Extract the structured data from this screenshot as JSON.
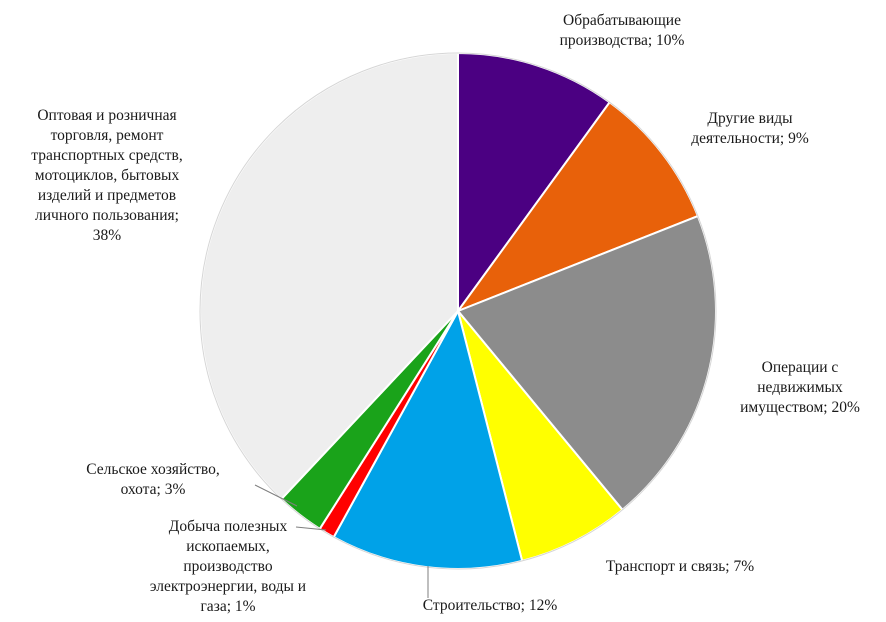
{
  "chart_data": {
    "type": "pie",
    "title": "",
    "start_angle_deg": 0,
    "direction": "clockwise",
    "slices": [
      {
        "label_lines": [
          "Обрабатывающие",
          "производства; 10%"
        ],
        "value": 10,
        "color": "#4b0082"
      },
      {
        "label_lines": [
          "Другие виды",
          "деятельности; 9%"
        ],
        "value": 9,
        "color": "#e8610a"
      },
      {
        "label_lines": [
          "Операции с",
          "недвижимых",
          "имуществом; 20%"
        ],
        "value": 20,
        "color": "#8c8c8c"
      },
      {
        "label_lines": [
          "Транспорт и связь; 7%"
        ],
        "value": 7,
        "color": "#ffff00"
      },
      {
        "label_lines": [
          "Строительство; 12%"
        ],
        "value": 12,
        "color": "#00a2e8"
      },
      {
        "label_lines": [
          "Добыча полезных",
          "ископаемых,",
          "производство",
          "электроэнергии, воды и",
          "газа; 1%"
        ],
        "value": 1,
        "color": "#ff0000"
      },
      {
        "label_lines": [
          "Сельское хозяйство,",
          "охота; 3%"
        ],
        "value": 3,
        "color": "#1aa31a"
      },
      {
        "label_lines": [
          "Оптовая и розничная",
          "торговля, ремонт",
          "транспортных средств,",
          "мотоциклов, бытовых",
          "изделий и предметов",
          "личного пользования;",
          "38%"
        ],
        "value": 38,
        "color": "#eeeeee"
      }
    ]
  }
}
